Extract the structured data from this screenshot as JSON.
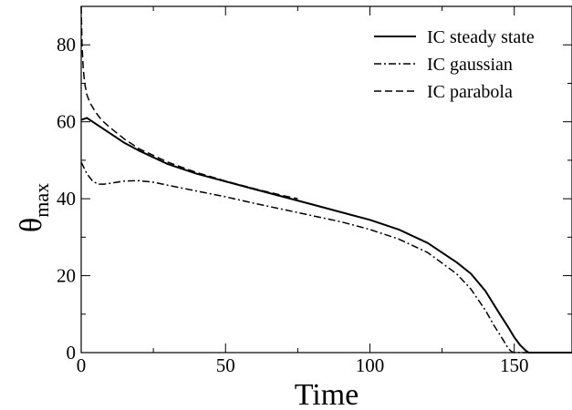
{
  "chart_data": {
    "type": "line",
    "title": "",
    "xlabel": "Time",
    "ylabel": "θ",
    "ylabel_subscript": "max",
    "xlim": [
      0,
      170
    ],
    "ylim": [
      0,
      90
    ],
    "xticks": [
      0,
      50,
      100,
      150
    ],
    "yticks": [
      0,
      20,
      40,
      60,
      80
    ],
    "xtick_labels": [
      "0",
      "50",
      "100",
      "150"
    ],
    "ytick_labels": [
      "0",
      "20",
      "40",
      "60",
      "80"
    ],
    "grid": false,
    "legend_position": "top-right",
    "series": [
      {
        "name": "IC steady state",
        "style": "solid",
        "color": "#000000",
        "x": [
          0,
          2,
          5,
          10,
          15,
          20,
          30,
          40,
          50,
          60,
          70,
          80,
          90,
          100,
          110,
          120,
          130,
          135,
          140,
          145,
          148,
          150,
          152,
          154,
          155,
          156,
          160,
          170
        ],
        "y": [
          60.5,
          61,
          59.5,
          57,
          54.5,
          52.5,
          49,
          46.5,
          44.5,
          42.5,
          40.5,
          38.5,
          36.5,
          34.5,
          32,
          28.5,
          23.5,
          20.5,
          16,
          10,
          6.5,
          4,
          2,
          0.5,
          0,
          0,
          0,
          0
        ]
      },
      {
        "name": "IC gaussian",
        "style": "dashdot",
        "color": "#000000",
        "x": [
          0,
          2,
          4,
          6,
          8,
          10,
          15,
          20,
          25,
          30,
          40,
          50,
          60,
          70,
          80,
          90,
          100,
          110,
          120,
          130,
          135,
          140,
          143,
          146,
          148,
          149,
          150,
          152,
          155,
          160,
          170
        ],
        "y": [
          49.5,
          46.5,
          44.5,
          43.8,
          43.8,
          44,
          44.6,
          44.7,
          44.3,
          43.5,
          42,
          40.5,
          38.8,
          37.2,
          35.6,
          34,
          32,
          29.5,
          26,
          20.5,
          16.5,
          11,
          7,
          3.5,
          1,
          0.3,
          0,
          0,
          0,
          0,
          0
        ]
      },
      {
        "name": "IC parabola",
        "style": "dashed",
        "color": "#000000",
        "x": [
          0,
          0.3,
          0.7,
          1.2,
          2,
          3,
          5,
          7,
          10,
          15,
          20,
          30,
          40,
          50,
          60,
          70,
          75
        ],
        "y": [
          90,
          80,
          74,
          70,
          67,
          65,
          62.5,
          60.5,
          58.5,
          55.5,
          53,
          49.5,
          46.8,
          44.6,
          42.6,
          40.8,
          40
        ]
      }
    ]
  }
}
